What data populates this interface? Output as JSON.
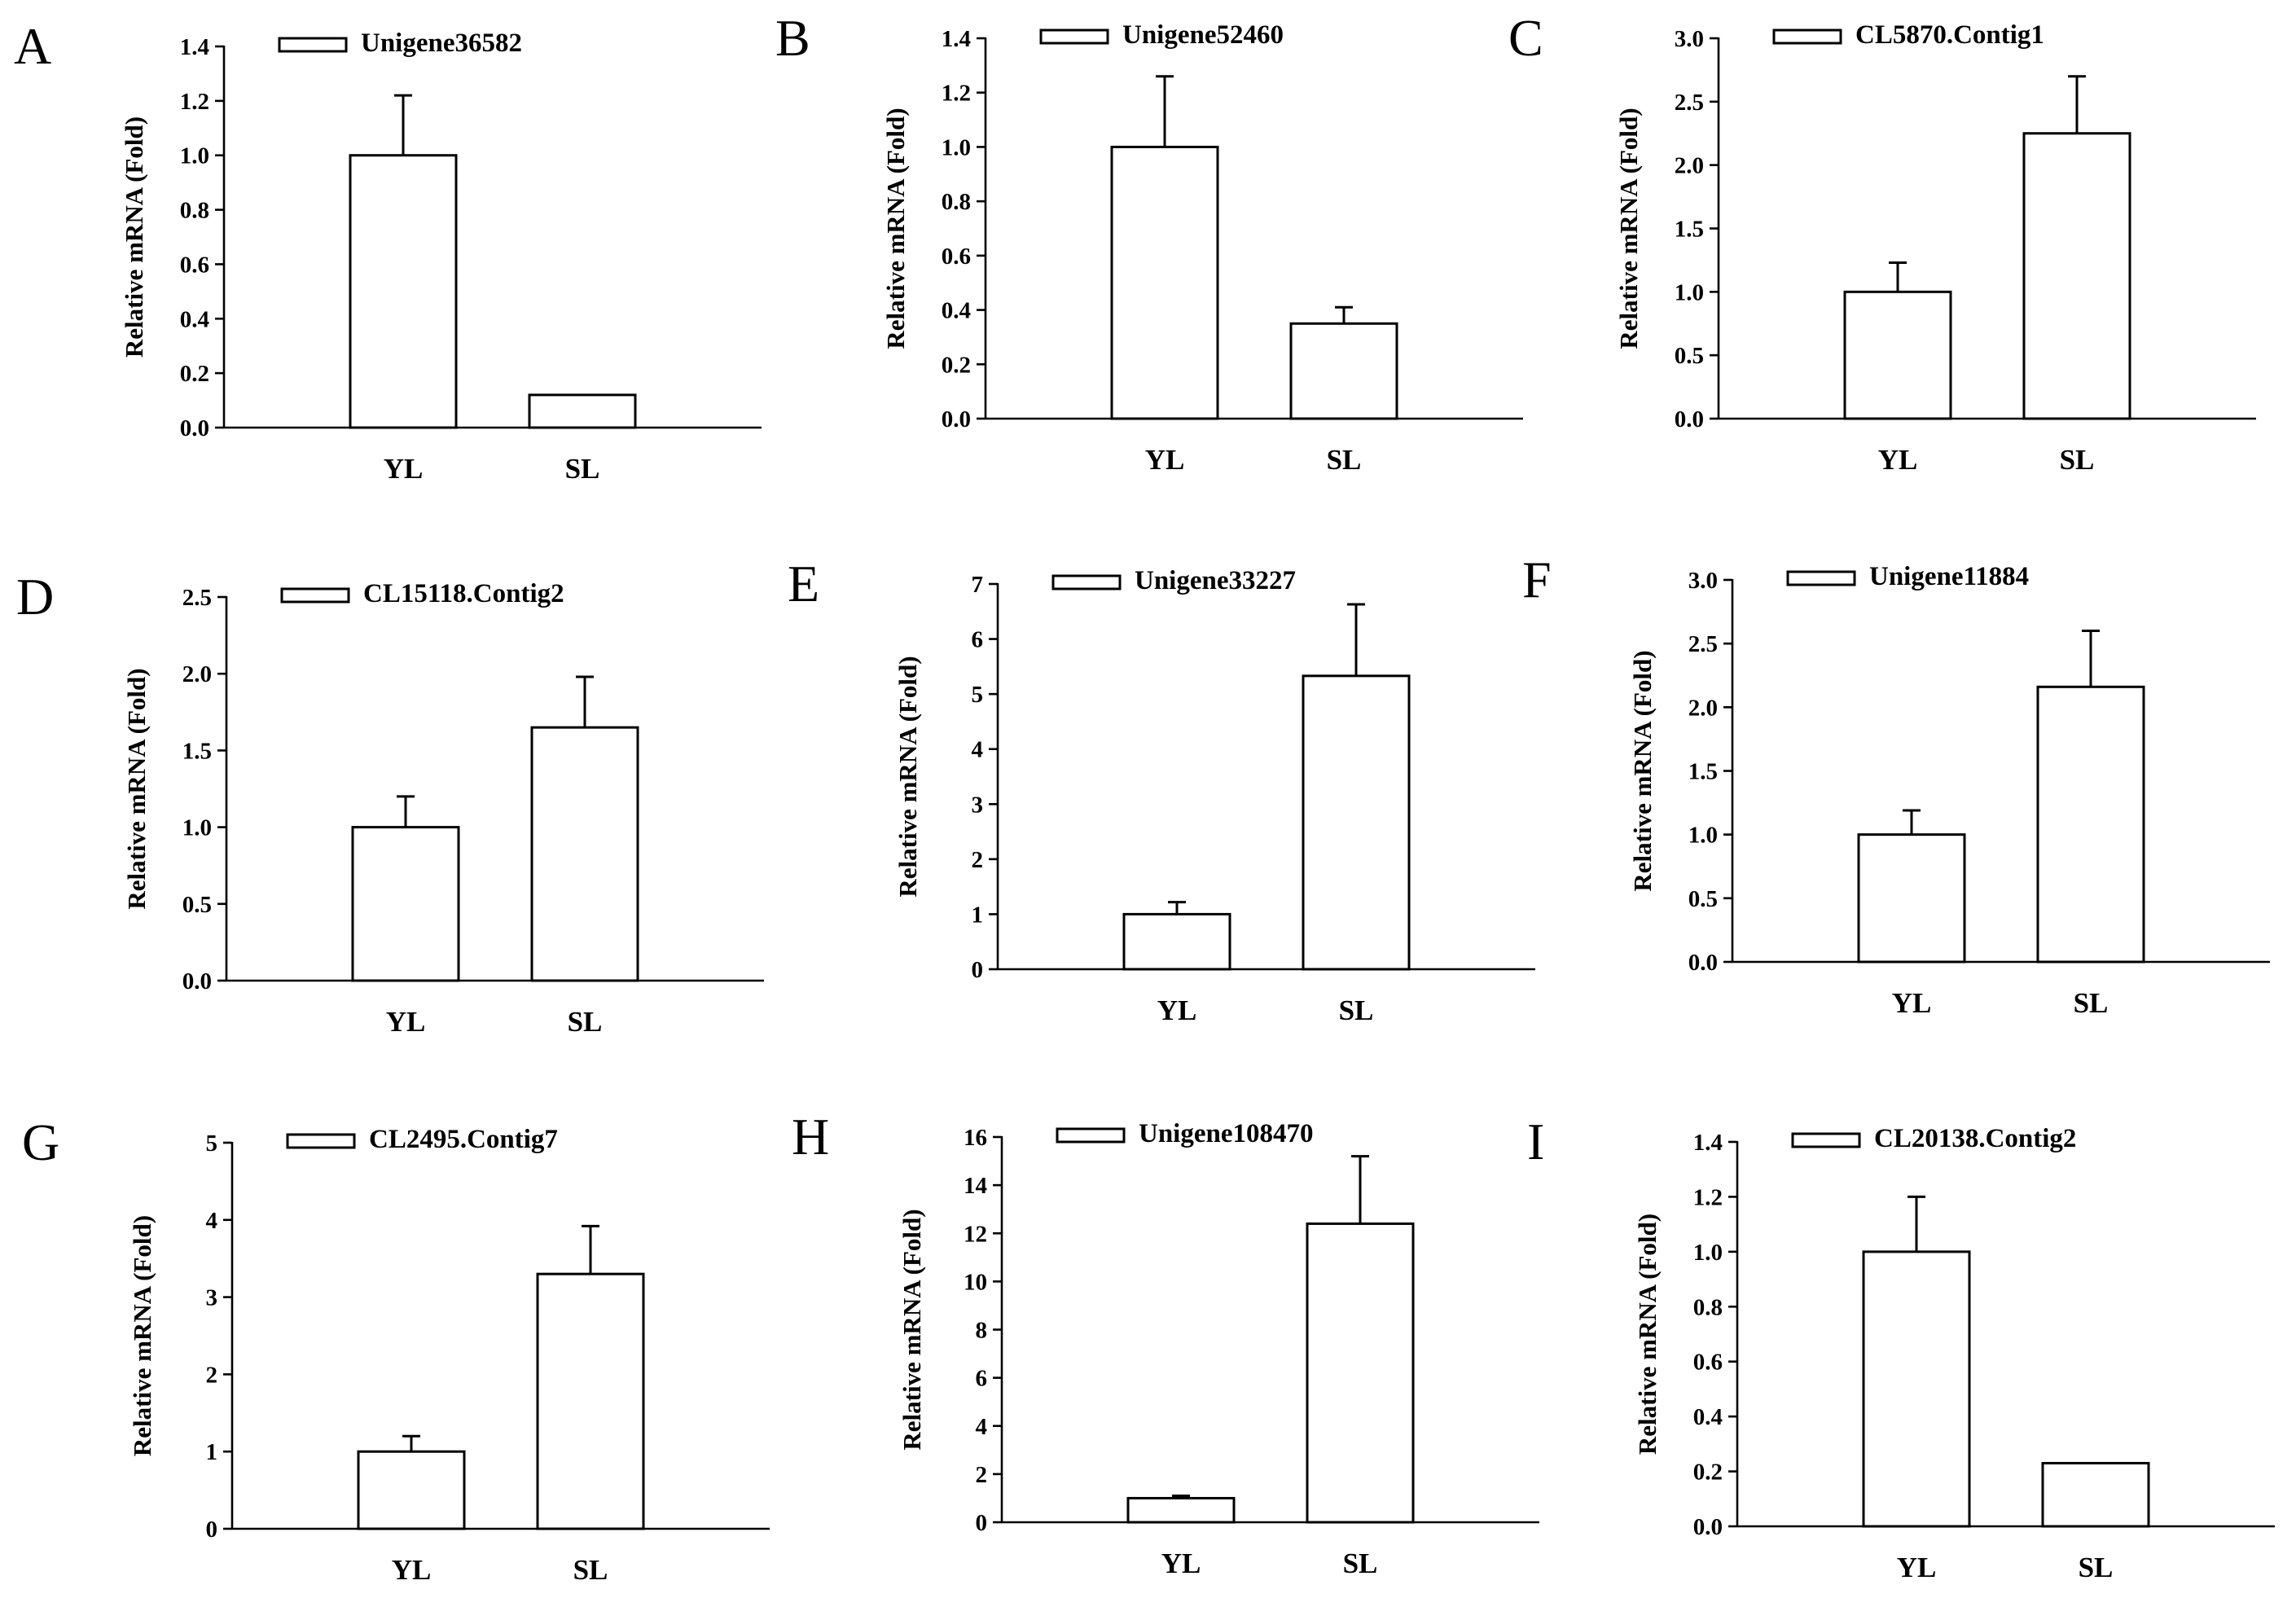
{
  "chart_data": [
    {
      "type": "bar",
      "panel": "A",
      "legend": "Unigene36582",
      "ylabel": "Relative mRNA (Fold)",
      "categories": [
        "YL",
        "SL"
      ],
      "values": [
        1.0,
        0.12
      ],
      "errors": [
        0.22,
        0.0
      ],
      "ylim": [
        0,
        1.4
      ],
      "yticks": [
        "0.0",
        "0.2",
        "0.4",
        "0.6",
        "0.8",
        "1.0",
        "1.2",
        "1.4"
      ],
      "legend_position": "top-left",
      "grid": false
    },
    {
      "type": "bar",
      "panel": "B",
      "legend": "Unigene52460",
      "ylabel": "Relative mRNA (Fold)",
      "categories": [
        "YL",
        "SL"
      ],
      "values": [
        1.0,
        0.35
      ],
      "errors": [
        0.26,
        0.06
      ],
      "ylim": [
        0,
        1.4
      ],
      "yticks": [
        "0.0",
        "0.2",
        "0.4",
        "0.6",
        "0.8",
        "1.0",
        "1.2",
        "1.4"
      ],
      "legend_position": "top-left",
      "grid": false
    },
    {
      "type": "bar",
      "panel": "C",
      "legend": "CL5870.Contig1",
      "ylabel": "Relative mRNA (Fold)",
      "categories": [
        "YL",
        "SL"
      ],
      "values": [
        1.0,
        2.25
      ],
      "errors": [
        0.23,
        0.45
      ],
      "ylim": [
        0,
        3.0
      ],
      "yticks": [
        "0.0",
        "0.5",
        "1.0",
        "1.5",
        "2.0",
        "2.5",
        "3.0"
      ],
      "legend_position": "top-left",
      "grid": false
    },
    {
      "type": "bar",
      "panel": "D",
      "legend": "CL15118.Contig2",
      "ylabel": "Relative mRNA (Fold)",
      "categories": [
        "YL",
        "SL"
      ],
      "values": [
        1.0,
        1.65
      ],
      "errors": [
        0.2,
        0.33
      ],
      "ylim": [
        0,
        2.5
      ],
      "yticks": [
        "0.0",
        "0.5",
        "1.0",
        "1.5",
        "2.0",
        "2.5"
      ],
      "legend_position": "top-left",
      "grid": false
    },
    {
      "type": "bar",
      "panel": "E",
      "legend": "Unigene33227",
      "ylabel": "Relative mRNA (Fold)",
      "categories": [
        "YL",
        "SL"
      ],
      "values": [
        1.0,
        5.33
      ],
      "errors": [
        0.22,
        1.3
      ],
      "ylim": [
        0,
        7
      ],
      "yticks": [
        "0",
        "1",
        "2",
        "3",
        "4",
        "5",
        "6",
        "7"
      ],
      "legend_position": "top-left",
      "grid": false
    },
    {
      "type": "bar",
      "panel": "F",
      "legend": "Unigene11884",
      "ylabel": "Relative mRNA (Fold)",
      "categories": [
        "YL",
        "SL"
      ],
      "values": [
        1.0,
        2.16
      ],
      "errors": [
        0.19,
        0.44
      ],
      "ylim": [
        0,
        3.0
      ],
      "yticks": [
        "0.0",
        "0.5",
        "1.0",
        "1.5",
        "2.0",
        "2.5",
        "3.0"
      ],
      "legend_position": "top-left",
      "grid": false
    },
    {
      "type": "bar",
      "panel": "G",
      "legend": "CL2495.Contig7",
      "ylabel": "Relative mRNA (Fold)",
      "categories": [
        "YL",
        "SL"
      ],
      "values": [
        1.0,
        3.3
      ],
      "errors": [
        0.2,
        0.62
      ],
      "ylim": [
        0,
        5
      ],
      "yticks": [
        "0",
        "1",
        "2",
        "3",
        "4",
        "5"
      ],
      "legend_position": "top-left",
      "grid": false
    },
    {
      "type": "bar",
      "panel": "H",
      "legend": "Unigene108470",
      "ylabel": "Relative mRNA (Fold)",
      "categories": [
        "YL",
        "SL"
      ],
      "values": [
        1.0,
        12.4
      ],
      "errors": [
        0.1,
        2.8
      ],
      "ylim": [
        0,
        16
      ],
      "yticks": [
        "0",
        "2",
        "4",
        "6",
        "8",
        "10",
        "12",
        "14",
        "16"
      ],
      "legend_position": "top-left",
      "grid": false
    },
    {
      "type": "bar",
      "panel": "I",
      "legend": "CL20138.Contig2",
      "ylabel": "Relative mRNA (Fold)",
      "categories": [
        "YL",
        "SL"
      ],
      "values": [
        1.0,
        0.23
      ],
      "errors": [
        0.2,
        0.0
      ],
      "ylim": [
        0,
        1.4
      ],
      "yticks": [
        "0.0",
        "0.2",
        "0.4",
        "0.6",
        "0.8",
        "1.0",
        "1.2",
        "1.4"
      ],
      "legend_position": "top-left",
      "grid": false
    }
  ]
}
